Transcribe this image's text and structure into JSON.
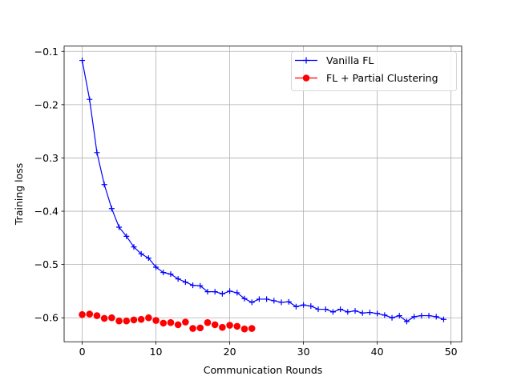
{
  "chart_data": {
    "type": "line",
    "xlabel": "Communication Rounds",
    "ylabel": "Training loss",
    "xlim": [
      -2.45,
      51.45
    ],
    "ylim": [
      -0.645,
      -0.09
    ],
    "xticks": [
      0,
      10,
      20,
      30,
      40,
      50
    ],
    "yticks": [
      -0.6,
      -0.5,
      -0.4,
      -0.3,
      -0.2,
      -0.1
    ],
    "xtick_labels": [
      "0",
      "10",
      "20",
      "30",
      "40",
      "50"
    ],
    "ytick_labels": [
      "−0.6",
      "−0.5",
      "−0.4",
      "−0.3",
      "−0.2",
      "−0.1"
    ],
    "grid": true,
    "legend_position": "top-right",
    "series": [
      {
        "name": "Vanilla FL",
        "color": "#0000ff",
        "marker": "plus",
        "line": true,
        "x": [
          0,
          1,
          2,
          3,
          4,
          5,
          6,
          7,
          8,
          9,
          10,
          11,
          12,
          13,
          14,
          15,
          16,
          17,
          18,
          19,
          20,
          21,
          22,
          23,
          24,
          25,
          26,
          27,
          28,
          29,
          30,
          31,
          32,
          33,
          34,
          35,
          36,
          37,
          38,
          39,
          40,
          41,
          42,
          43,
          44,
          45,
          46,
          47,
          48,
          49
        ],
        "y": [
          -0.117,
          -0.19,
          -0.29,
          -0.35,
          -0.395,
          -0.43,
          -0.447,
          -0.467,
          -0.48,
          -0.488,
          -0.505,
          -0.515,
          -0.518,
          -0.527,
          -0.533,
          -0.539,
          -0.54,
          -0.551,
          -0.551,
          -0.555,
          -0.55,
          -0.553,
          -0.564,
          -0.571,
          -0.565,
          -0.565,
          -0.568,
          -0.571,
          -0.57,
          -0.579,
          -0.576,
          -0.578,
          -0.584,
          -0.584,
          -0.589,
          -0.584,
          -0.589,
          -0.587,
          -0.591,
          -0.59,
          -0.592,
          -0.595,
          -0.6,
          -0.596,
          -0.607,
          -0.598,
          -0.596,
          -0.596,
          -0.598,
          -0.603
        ]
      },
      {
        "name": "FL + Partial Clustering",
        "color": "#ff0000",
        "marker": "circle",
        "line": false,
        "x": [
          0,
          1,
          2,
          3,
          4,
          5,
          6,
          7,
          8,
          9,
          10,
          11,
          12,
          13,
          14,
          15,
          16,
          17,
          18,
          19,
          20,
          21,
          22,
          23
        ],
        "y": [
          -0.594,
          -0.593,
          -0.596,
          -0.601,
          -0.6,
          -0.606,
          -0.606,
          -0.604,
          -0.603,
          -0.6,
          -0.605,
          -0.61,
          -0.609,
          -0.613,
          -0.608,
          -0.62,
          -0.619,
          -0.609,
          -0.613,
          -0.618,
          -0.614,
          -0.616,
          -0.621,
          -0.62
        ]
      }
    ]
  }
}
